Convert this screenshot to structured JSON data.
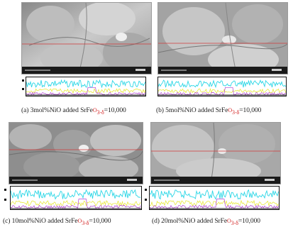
{
  "panels": [
    {
      "caption": {
        "prefix": "(a) 3mol%NiO added SrFe",
        "highlight": "O",
        "subscript": "3-δ",
        "suffix": "=10,000"
      },
      "image_alt": "sem-micrograph",
      "linescan": {
        "series_colors": [
          "#29d6e6",
          "#e6e629",
          "#b040d0"
        ]
      }
    },
    {
      "caption": {
        "prefix": "(b) 5mol%NiO added SrFe",
        "highlight": "O",
        "subscript": "3-δ",
        "suffix": "=10,000"
      },
      "image_alt": "sem-micrograph",
      "linescan": {
        "series_colors": [
          "#29d6e6",
          "#e6e629",
          "#b040d0"
        ]
      }
    },
    {
      "caption": {
        "prefix": "(c) 10mol%NiO added SrFe",
        "highlight": "O",
        "subscript": "3-δ",
        "suffix": "=10,000"
      },
      "image_alt": "sem-micrograph",
      "linescan": {
        "series_colors": [
          "#29d6e6",
          "#e6e629",
          "#b040d0"
        ]
      }
    },
    {
      "caption": {
        "prefix": "(d) 20mol%NiO added SrFe",
        "highlight": "O",
        "subscript": "3-δ",
        "suffix": "=10,000"
      },
      "image_alt": "sem-micrograph",
      "linescan": {
        "series_colors": [
          "#29d6e6",
          "#e6e629",
          "#b040d0"
        ]
      }
    }
  ],
  "colors": {
    "scan_line": "#d23a3a",
    "plot_border": "#111111"
  }
}
